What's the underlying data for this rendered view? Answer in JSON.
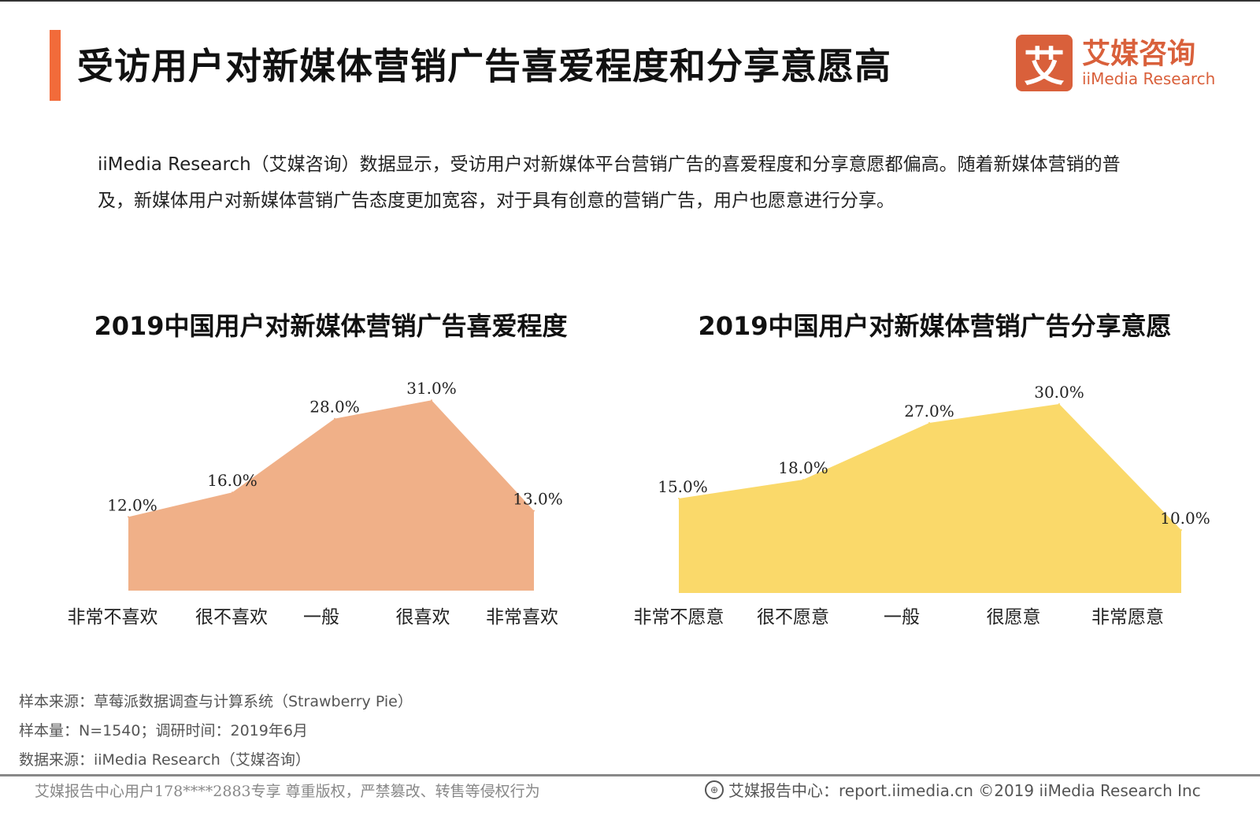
{
  "header": {
    "title": "受访用户对新媒体营销广告喜爱程度和分享意愿高",
    "logo_cn": "艾媒咨询",
    "logo_en": "iiMedia Research",
    "logo_mark": "艾"
  },
  "description": "iiMedia Research（艾媒咨询）数据显示，受访用户对新媒体平台营销广告的喜爱程度和分享意愿都偏高。随着新媒体营销的普及，新媒体用户对新媒体营销广告态度更加宽容，对于具有创意的营销广告，用户也愿意进行分享。",
  "chart_data": [
    {
      "type": "area",
      "title": "2019中国用户对新媒体营销广告喜爱程度",
      "categories": [
        "非常不喜欢",
        "很不喜欢",
        "一般",
        "很喜欢",
        "非常喜欢"
      ],
      "values": [
        12.0,
        16.0,
        28.0,
        31.0,
        13.0
      ],
      "labels": [
        "12.0%",
        "16.0%",
        "28.0%",
        "31.0%",
        "13.0%"
      ],
      "color": "#f0b088",
      "grid": false
    },
    {
      "type": "area",
      "title": "2019中国用户对新媒体营销广告分享意愿",
      "categories": [
        "非常不愿意",
        "很不愿意",
        "一般",
        "很愿意",
        "非常愿意"
      ],
      "values": [
        15.0,
        18.0,
        27.0,
        30.0,
        10.0
      ],
      "labels": [
        "15.0%",
        "18.0%",
        "27.0%",
        "30.0%",
        "10.0%"
      ],
      "color": "#fad96a",
      "grid": false
    }
  ],
  "sources": [
    "样本来源：草莓派数据调查与计算系统（Strawberry Pie）",
    "样本量：N=1540；调研时间：2019年6月",
    "数据来源：iiMedia Research（艾媒咨询）"
  ],
  "footer": {
    "left": "艾媒报告中心用户178****2883专享 尊重版权，严禁篡改、转售等侵权行为",
    "right": "艾媒报告中心：report.iimedia.cn   ©2019  iiMedia Research  Inc"
  }
}
